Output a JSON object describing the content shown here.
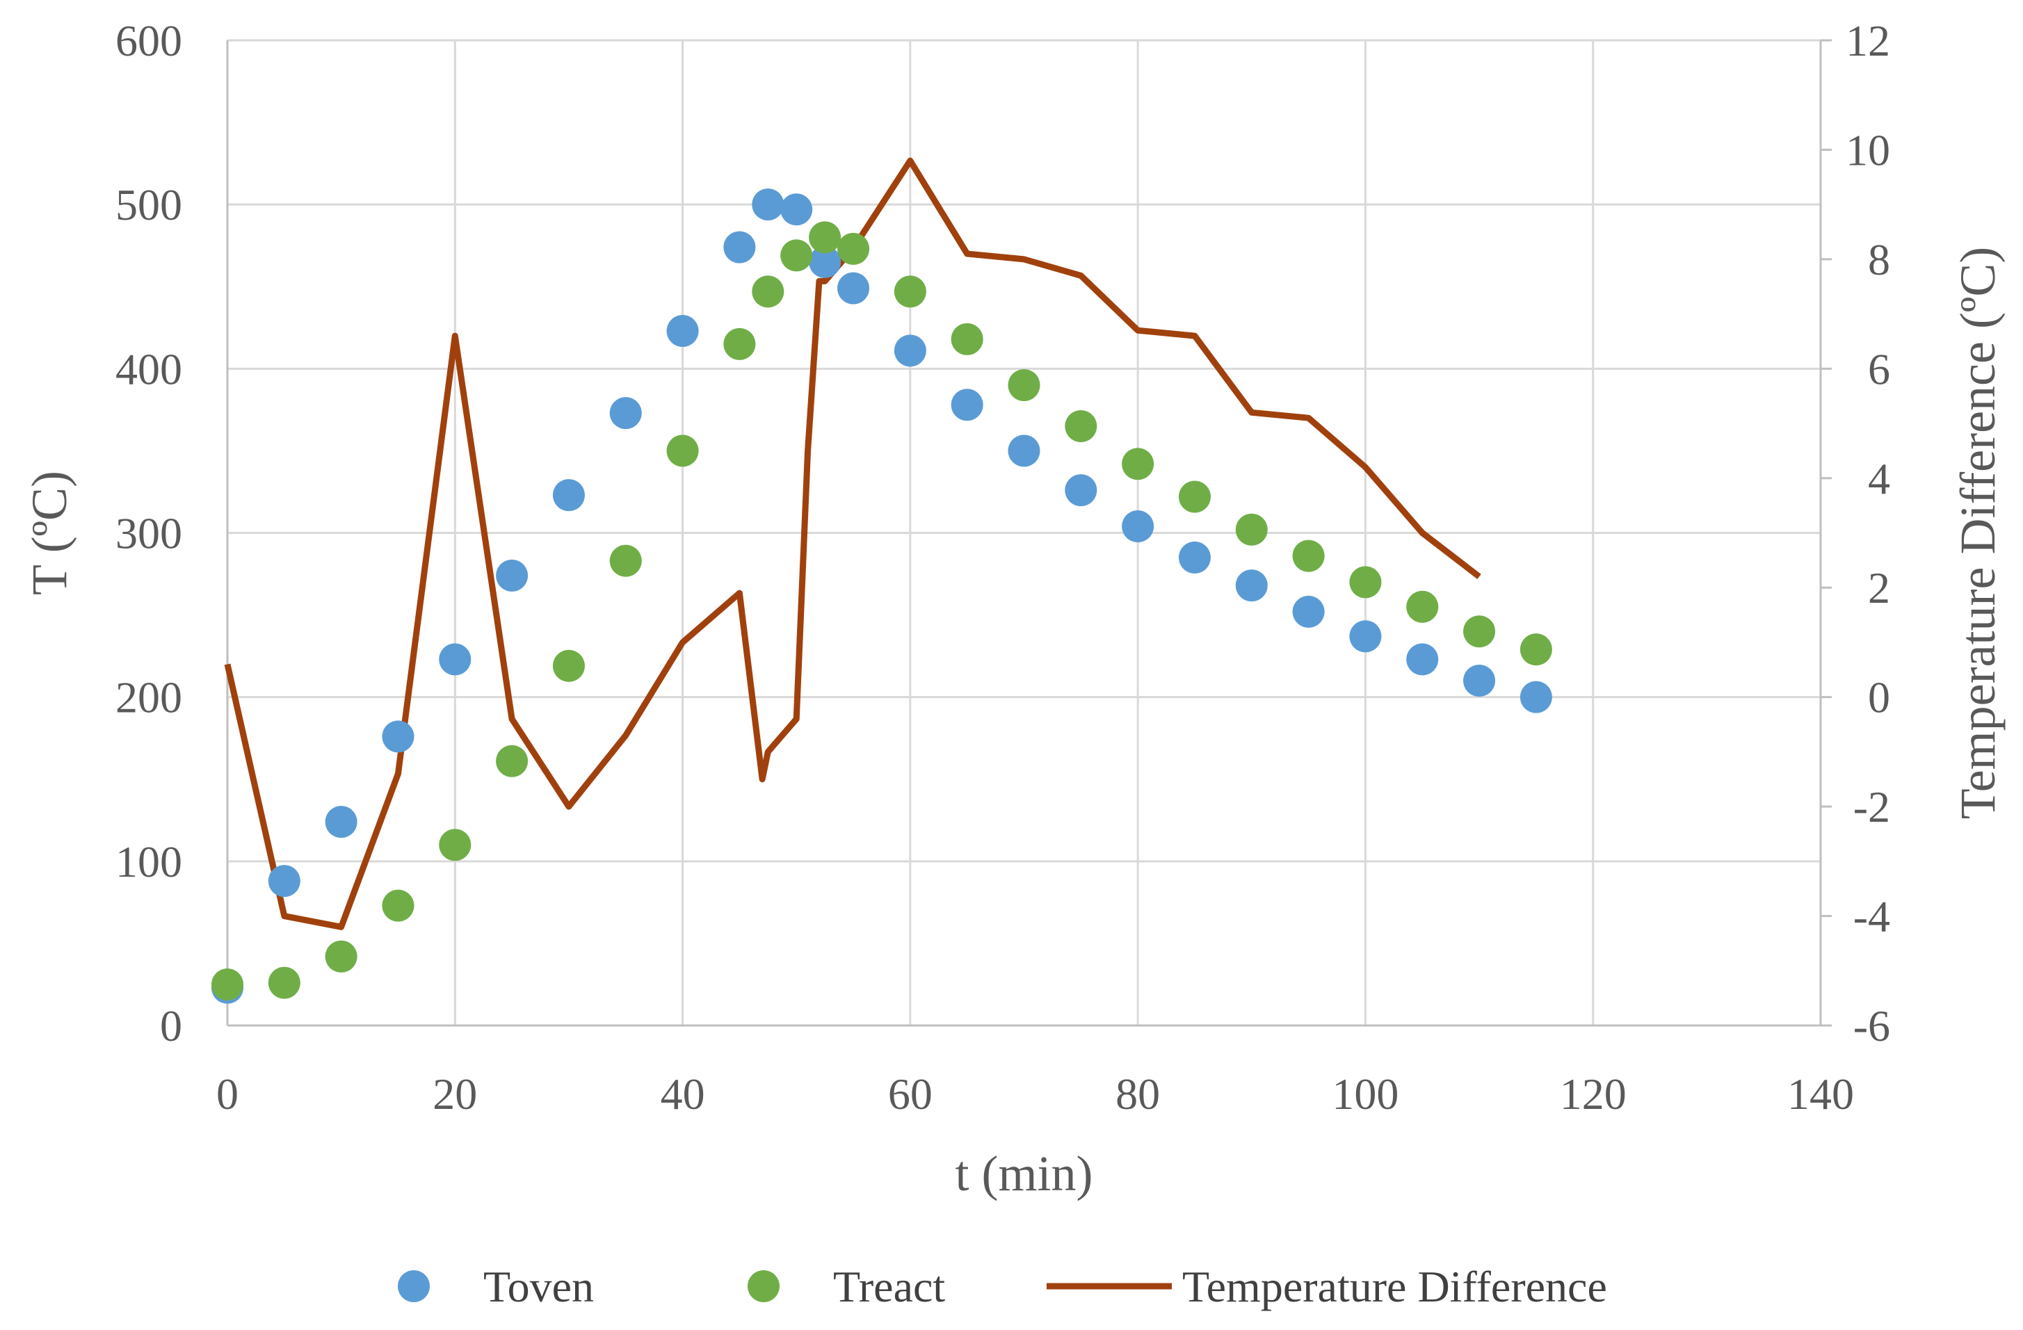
{
  "chart_data": {
    "type": "scatter",
    "title": "",
    "xlabel": "t (min)",
    "ylabel": "T (ºC)",
    "y2label": "Temperature Difference (ºC)",
    "xlim": [
      0,
      140
    ],
    "ylim": [
      0,
      600
    ],
    "y2lim": [
      -6,
      12
    ],
    "xticks": [
      0,
      20,
      40,
      60,
      80,
      100,
      120,
      140
    ],
    "yticks": [
      0,
      100,
      200,
      300,
      400,
      500,
      600
    ],
    "y2ticks": [
      -6,
      -4,
      -2,
      0,
      2,
      4,
      6,
      8,
      10,
      12
    ],
    "grid": true,
    "legend_position": "bottom",
    "series": [
      {
        "name": "Toven",
        "kind": "scatter",
        "axis": "left",
        "color": "#5B9BD5",
        "x": [
          0,
          5,
          10,
          15,
          20,
          25,
          30,
          35,
          40,
          45,
          47.5,
          50,
          52.5,
          55,
          60,
          65,
          70,
          75,
          80,
          85,
          90,
          95,
          100,
          105,
          110,
          115
        ],
        "y": [
          23,
          88,
          124,
          176,
          223,
          274,
          323,
          373,
          423,
          474,
          500,
          497,
          465,
          449,
          411,
          378,
          350,
          326,
          304,
          285,
          268,
          252,
          237,
          223,
          210,
          200
        ]
      },
      {
        "name": "Treact",
        "kind": "scatter",
        "axis": "left",
        "color": "#70AD47",
        "x": [
          0,
          5,
          10,
          15,
          20,
          25,
          30,
          35,
          40,
          45,
          47.5,
          50,
          52.5,
          55,
          60,
          65,
          70,
          75,
          80,
          85,
          90,
          95,
          100,
          105,
          110,
          115
        ],
        "y": [
          25,
          26,
          42,
          73,
          110,
          161,
          219,
          283,
          350,
          415,
          447,
          469,
          480,
          473,
          447,
          418,
          390,
          365,
          342,
          322,
          302,
          286,
          270,
          255,
          240,
          229
        ]
      },
      {
        "name": "Temperature Difference",
        "kind": "line",
        "axis": "right",
        "color": "#A0410D",
        "x": [
          0,
          5,
          10,
          15,
          20,
          25,
          30,
          35,
          40,
          45,
          47,
          47.5,
          50,
          51,
          52,
          52.5,
          55,
          60,
          65,
          70,
          75,
          80,
          85,
          90,
          95,
          100,
          105,
          110
        ],
        "y": [
          0.6,
          -4.0,
          -4.2,
          -1.4,
          6.6,
          -0.4,
          -2.0,
          -0.7,
          1.0,
          1.9,
          -1.5,
          -1.0,
          -0.4,
          4.5,
          7.6,
          7.6,
          8.2,
          9.8,
          8.1,
          8.0,
          7.7,
          6.7,
          6.6,
          5.2,
          5.1,
          4.2,
          3.0,
          2.2
        ]
      }
    ]
  }
}
